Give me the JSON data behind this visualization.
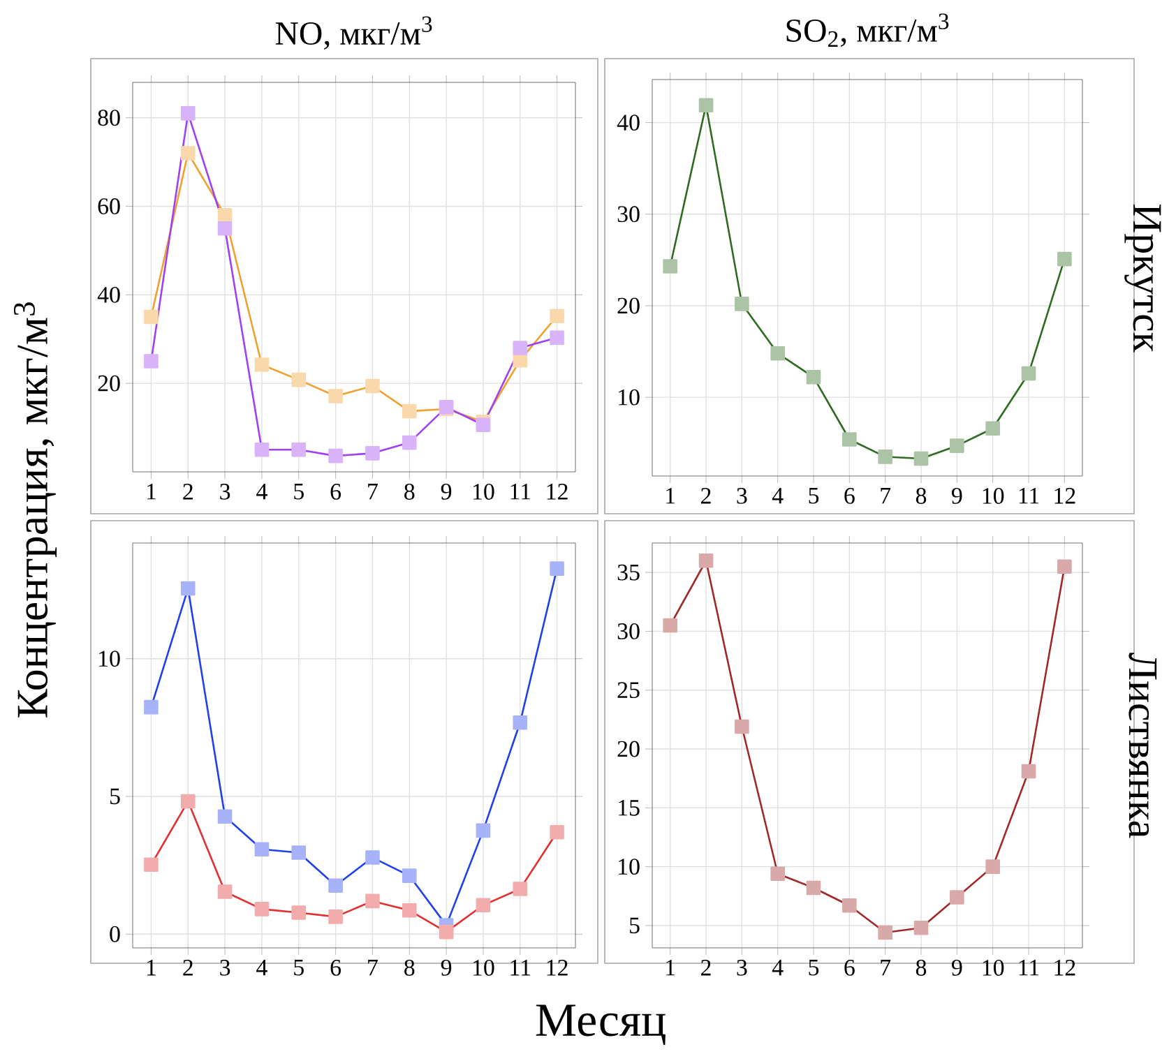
{
  "chart_data": [
    {
      "type": "line",
      "title": "NO, мкг/м$^{3}$",
      "ylabel": "Концентрация, мкг/м$^{3}$",
      "x": [
        1,
        2,
        3,
        4,
        5,
        6,
        7,
        8,
        9,
        10,
        11,
        12
      ],
      "xlim": [
        0.5,
        12.5
      ],
      "ylim": [
        0,
        88
      ],
      "xticks": [
        1,
        2,
        3,
        4,
        5,
        6,
        7,
        8,
        9,
        10,
        11,
        12
      ],
      "yticks": [
        20,
        40,
        60,
        80
      ],
      "grid": true,
      "marker": "square",
      "series": [
        {
          "color": "#f0a030",
          "values": [
            35,
            72,
            58,
            24.2,
            20.8,
            17.1,
            19.4,
            13.7,
            14.2,
            11.3,
            25.2,
            35.2
          ]
        },
        {
          "color": "#a040f0",
          "values": [
            25,
            81,
            55,
            5,
            5,
            3.6,
            4.2,
            6.6,
            14.6,
            10.6,
            28,
            30.3
          ]
        }
      ]
    },
    {
      "type": "line",
      "title": "SO$_{2}$, мкг/м$^{3}$",
      "y2label": "Иркутск",
      "x": [
        1,
        2,
        3,
        4,
        5,
        6,
        7,
        8,
        9,
        10,
        11,
        12
      ],
      "xlim": [
        0.5,
        12.5
      ],
      "ylim": [
        1.4,
        44.7
      ],
      "xticks": [
        1,
        2,
        3,
        4,
        5,
        6,
        7,
        8,
        9,
        10,
        11,
        12
      ],
      "yticks": [
        10,
        20,
        30,
        40
      ],
      "grid": true,
      "marker": "square",
      "series": [
        {
          "color": "#2e6b1e",
          "values": [
            24.3,
            41.9,
            20.2,
            14.8,
            12.2,
            5.4,
            3.5,
            3.3,
            4.7,
            6.6,
            12.6,
            25.1
          ]
        }
      ]
    },
    {
      "type": "line",
      "xlabel": "Месяц",
      "x": [
        1,
        2,
        3,
        4,
        5,
        6,
        7,
        8,
        9,
        10,
        11,
        12
      ],
      "xlim": [
        0.5,
        12.5
      ],
      "ylim": [
        -0.5,
        14.2
      ],
      "xticks": [
        1,
        2,
        3,
        4,
        5,
        6,
        7,
        8,
        9,
        10,
        11,
        12
      ],
      "yticks": [
        0,
        5,
        10
      ],
      "grid": true,
      "marker": "square",
      "series": [
        {
          "color": "#2040f0",
          "values": [
            8.24,
            12.55,
            4.27,
            3.08,
            2.96,
            1.76,
            2.78,
            2.12,
            0.32,
            3.76,
            7.68,
            13.27
          ]
        },
        {
          "color": "#e03030",
          "values": [
            2.52,
            4.82,
            1.54,
            0.91,
            0.78,
            0.63,
            1.2,
            0.86,
            0.08,
            1.05,
            1.64,
            3.7
          ]
        }
      ]
    },
    {
      "type": "line",
      "y2label": "Листвянка",
      "x": [
        1,
        2,
        3,
        4,
        5,
        6,
        7,
        8,
        9,
        10,
        11,
        12
      ],
      "xlim": [
        0.5,
        12.5
      ],
      "ylim": [
        3.1,
        37.5
      ],
      "xticks": [
        1,
        2,
        3,
        4,
        5,
        6,
        7,
        8,
        9,
        10,
        11,
        12
      ],
      "yticks": [
        5,
        10,
        15,
        20,
        25,
        30,
        35
      ],
      "grid": true,
      "marker": "square",
      "series": [
        {
          "color": "#a02828",
          "values": [
            30.5,
            36,
            21.9,
            9.4,
            8.2,
            6.7,
            4.4,
            4.8,
            7.4,
            10,
            18.1,
            35.5
          ]
        }
      ]
    }
  ]
}
